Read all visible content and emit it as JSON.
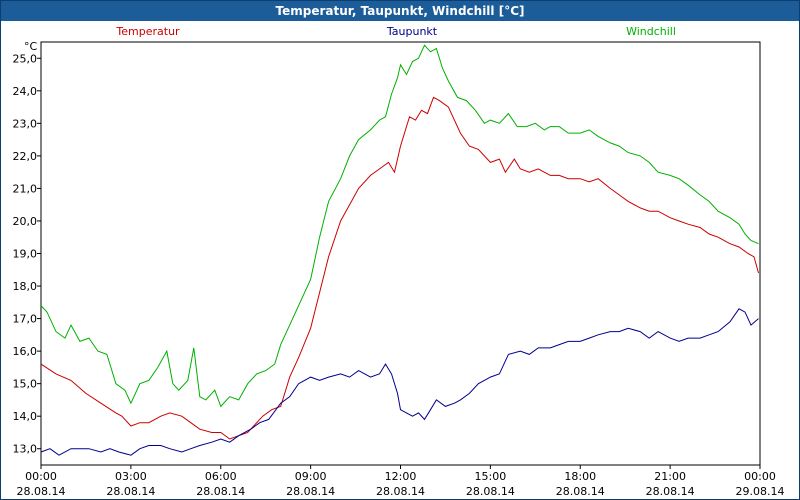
{
  "window": {
    "title": "Temperatur, Taupunkt, Windchill [°C]"
  },
  "chart_data": {
    "type": "line",
    "title": "Temperatur, Taupunkt, Windchill [°C]",
    "ylabel": "°C",
    "ylim": [
      12.5,
      25.5
    ],
    "yticks": [
      "13,0",
      "14,0",
      "15,0",
      "16,0",
      "17,0",
      "18,0",
      "19,0",
      "20,0",
      "21,0",
      "22,0",
      "23,0",
      "24,0",
      "25,0"
    ],
    "xlim": [
      0,
      24
    ],
    "xticks": [
      {
        "x": 0,
        "time": "00:00",
        "date": "28.08.14"
      },
      {
        "x": 3,
        "time": "03:00",
        "date": "28.08.14"
      },
      {
        "x": 6,
        "time": "06:00",
        "date": "28.08.14"
      },
      {
        "x": 9,
        "time": "09:00",
        "date": "28.08.14"
      },
      {
        "x": 12,
        "time": "12:00",
        "date": "28.08.14"
      },
      {
        "x": 15,
        "time": "15:00",
        "date": "28.08.14"
      },
      {
        "x": 18,
        "time": "18:00",
        "date": "28.08.14"
      },
      {
        "x": 21,
        "time": "21:00",
        "date": "28.08.14"
      },
      {
        "x": 24,
        "time": "00:00",
        "date": "29.08.14"
      }
    ],
    "grid": true,
    "legend_placement": "top",
    "series": [
      {
        "name": "Temperatur",
        "color": "#cc0000",
        "x": [
          0,
          0.5,
          1,
          1.5,
          2,
          2.5,
          2.7,
          3,
          3.3,
          3.6,
          4,
          4.3,
          4.7,
          5,
          5.3,
          5.7,
          6,
          6.3,
          6.6,
          6.9,
          7.1,
          7.4,
          7.7,
          8,
          8.3,
          8.6,
          9,
          9.3,
          9.6,
          10,
          10.3,
          10.6,
          11,
          11.3,
          11.6,
          11.8,
          12,
          12.3,
          12.5,
          12.7,
          12.9,
          13.1,
          13.3,
          13.6,
          14,
          14.3,
          14.6,
          15,
          15.3,
          15.5,
          15.8,
          16,
          16.3,
          16.6,
          17,
          17.3,
          17.6,
          18,
          18.3,
          18.6,
          19,
          19.3,
          19.6,
          20,
          20.3,
          20.6,
          21,
          21.3,
          21.6,
          22,
          22.3,
          22.6,
          23,
          23.3,
          23.6,
          23.8,
          23.95
        ],
        "values": [
          15.6,
          15.3,
          15.1,
          14.7,
          14.4,
          14.1,
          14.0,
          13.7,
          13.8,
          13.8,
          14.0,
          14.1,
          14.0,
          13.8,
          13.6,
          13.5,
          13.5,
          13.3,
          13.4,
          13.5,
          13.7,
          14.0,
          14.2,
          14.3,
          15.2,
          15.8,
          16.7,
          17.8,
          18.9,
          20.0,
          20.5,
          21.0,
          21.4,
          21.6,
          21.8,
          21.5,
          22.3,
          23.2,
          23.1,
          23.4,
          23.3,
          23.8,
          23.7,
          23.5,
          22.7,
          22.3,
          22.2,
          21.8,
          21.9,
          21.5,
          21.9,
          21.6,
          21.5,
          21.6,
          21.4,
          21.4,
          21.3,
          21.3,
          21.2,
          21.3,
          21.0,
          20.8,
          20.6,
          20.4,
          20.3,
          20.3,
          20.1,
          20.0,
          19.9,
          19.8,
          19.6,
          19.5,
          19.3,
          19.2,
          19.0,
          18.9,
          18.4
        ]
      },
      {
        "name": "Taupunkt",
        "color": "#00008b",
        "x": [
          0,
          0.3,
          0.6,
          1,
          1.3,
          1.6,
          2,
          2.3,
          2.6,
          3,
          3.3,
          3.6,
          4,
          4.3,
          4.7,
          5,
          5.3,
          5.7,
          6,
          6.3,
          6.6,
          7,
          7.3,
          7.6,
          8,
          8.3,
          8.6,
          9,
          9.3,
          9.6,
          10,
          10.3,
          10.6,
          11,
          11.3,
          11.5,
          11.7,
          11.9,
          12,
          12.2,
          12.4,
          12.6,
          12.8,
          13,
          13.2,
          13.5,
          13.8,
          14,
          14.3,
          14.6,
          15,
          15.3,
          15.6,
          16,
          16.3,
          16.6,
          17,
          17.3,
          17.6,
          18,
          18.3,
          18.6,
          19,
          19.3,
          19.6,
          20,
          20.3,
          20.6,
          21,
          21.3,
          21.6,
          22,
          22.3,
          22.6,
          23,
          23.3,
          23.5,
          23.7,
          23.95
        ],
        "values": [
          12.9,
          13.0,
          12.8,
          13.0,
          13.0,
          13.0,
          12.9,
          13.0,
          12.9,
          12.8,
          13.0,
          13.1,
          13.1,
          13.0,
          12.9,
          13.0,
          13.1,
          13.2,
          13.3,
          13.2,
          13.4,
          13.6,
          13.8,
          13.9,
          14.4,
          14.6,
          15.0,
          15.2,
          15.1,
          15.2,
          15.3,
          15.2,
          15.4,
          15.2,
          15.3,
          15.6,
          15.3,
          14.7,
          14.2,
          14.1,
          14.0,
          14.1,
          13.9,
          14.2,
          14.5,
          14.3,
          14.4,
          14.5,
          14.7,
          15.0,
          15.2,
          15.3,
          15.9,
          16.0,
          15.9,
          16.1,
          16.1,
          16.2,
          16.3,
          16.3,
          16.4,
          16.5,
          16.6,
          16.6,
          16.7,
          16.6,
          16.4,
          16.6,
          16.4,
          16.3,
          16.4,
          16.4,
          16.5,
          16.6,
          16.9,
          17.3,
          17.2,
          16.8,
          17.0
        ]
      },
      {
        "name": "Windchill",
        "color": "#00b000",
        "x": [
          0,
          0.2,
          0.5,
          0.8,
          1,
          1.3,
          1.6,
          1.9,
          2.2,
          2.5,
          2.8,
          3,
          3.3,
          3.6,
          3.9,
          4.2,
          4.4,
          4.6,
          4.9,
          5.1,
          5.3,
          5.5,
          5.8,
          6,
          6.3,
          6.6,
          6.9,
          7.2,
          7.5,
          7.8,
          8,
          8.3,
          8.6,
          9,
          9.3,
          9.6,
          10,
          10.3,
          10.6,
          11,
          11.3,
          11.5,
          11.7,
          11.9,
          12,
          12.2,
          12.4,
          12.6,
          12.8,
          13,
          13.2,
          13.4,
          13.6,
          13.9,
          14.2,
          14.5,
          14.8,
          15,
          15.3,
          15.6,
          15.9,
          16.2,
          16.5,
          16.8,
          17,
          17.3,
          17.6,
          18,
          18.3,
          18.6,
          19,
          19.3,
          19.6,
          20,
          20.3,
          20.6,
          21,
          21.3,
          21.6,
          22,
          22.3,
          22.6,
          23,
          23.3,
          23.5,
          23.7,
          23.95
        ],
        "values": [
          17.4,
          17.2,
          16.6,
          16.4,
          16.8,
          16.3,
          16.4,
          16.0,
          15.9,
          15.0,
          14.8,
          14.4,
          15.0,
          15.1,
          15.5,
          16.0,
          15.0,
          14.8,
          15.1,
          16.1,
          14.6,
          14.5,
          14.8,
          14.3,
          14.6,
          14.5,
          15.0,
          15.3,
          15.4,
          15.6,
          16.2,
          16.8,
          17.4,
          18.2,
          19.5,
          20.6,
          21.3,
          22.0,
          22.5,
          22.8,
          23.1,
          23.2,
          23.9,
          24.4,
          24.8,
          24.5,
          24.9,
          25.0,
          25.4,
          25.2,
          25.3,
          24.7,
          24.3,
          23.8,
          23.7,
          23.4,
          23.0,
          23.1,
          23.0,
          23.3,
          22.9,
          22.9,
          23.0,
          22.8,
          22.9,
          22.9,
          22.7,
          22.7,
          22.8,
          22.6,
          22.4,
          22.3,
          22.1,
          22.0,
          21.8,
          21.5,
          21.4,
          21.3,
          21.1,
          20.8,
          20.6,
          20.3,
          20.1,
          19.9,
          19.6,
          19.4,
          19.3
        ]
      }
    ]
  }
}
